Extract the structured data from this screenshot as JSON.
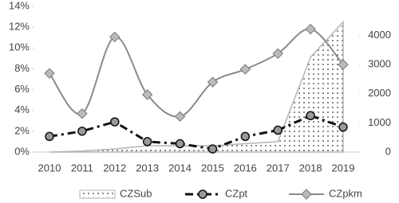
{
  "chart_data": {
    "type": "line",
    "categories": [
      "2010",
      "2011",
      "2012",
      "2013",
      "2014",
      "2015",
      "2016",
      "2017",
      "2018",
      "2019"
    ],
    "ylim": [
      0,
      14
    ],
    "yticks": [
      {
        "value": 0,
        "label": "0%"
      },
      {
        "value": 2,
        "label": "2%"
      },
      {
        "value": 4,
        "label": "4%"
      },
      {
        "value": 6,
        "label": "6%"
      },
      {
        "value": 8,
        "label": "8%"
      },
      {
        "value": 10,
        "label": "10%"
      },
      {
        "value": 12,
        "label": "12%"
      },
      {
        "value": 14,
        "label": "14%"
      }
    ],
    "y2lim": [
      0,
      5000
    ],
    "y2ticks": [
      0,
      1000,
      2000,
      3000,
      4000
    ],
    "legend": "bottom",
    "series": [
      {
        "name": "CZSub",
        "color": "#b5b5b5",
        "kind": "area",
        "values": [
          0,
          0.1,
          0.3,
          0.6,
          0.6,
          0.6,
          0.8,
          1.0,
          9.1,
          12.5
        ]
      },
      {
        "name": "CZpt",
        "color": "#111111",
        "marker": "circle",
        "dash": "dashdot",
        "values": [
          1.5,
          2.0,
          2.9,
          1.0,
          0.8,
          0.3,
          1.5,
          2.1,
          3.5,
          2.4
        ]
      },
      {
        "name": "CZpkm",
        "color": "#8a8a8a",
        "marker": "diamond",
        "smooth": true,
        "axis": "y2",
        "values": [
          2700,
          1320,
          3950,
          1970,
          1220,
          2400,
          2840,
          3380,
          4220,
          3000
        ]
      }
    ]
  }
}
